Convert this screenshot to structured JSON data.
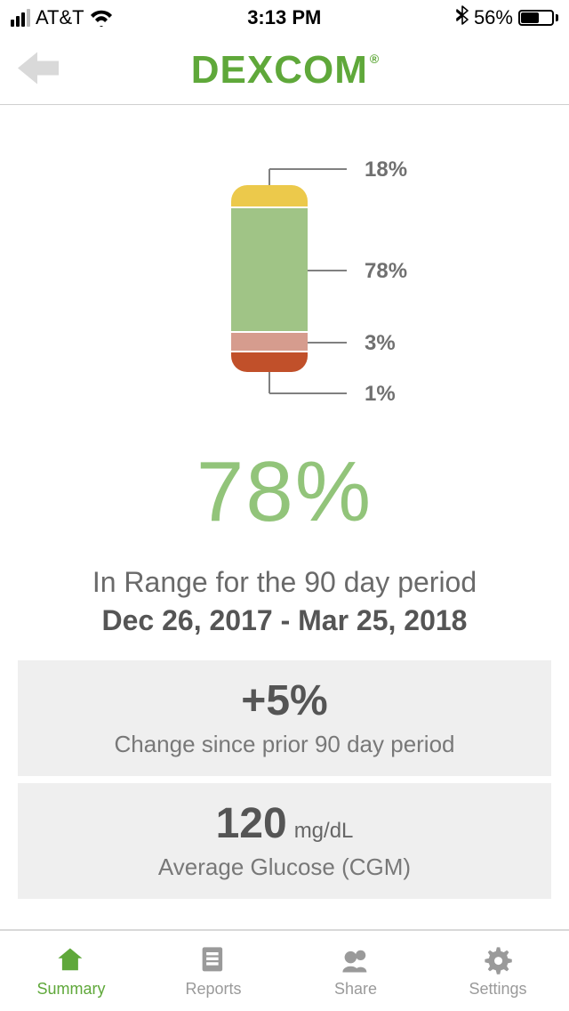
{
  "status": {
    "carrier": "AT&T",
    "time": "3:13 PM",
    "battery_pct": "56%",
    "battery_fill_pct": 56,
    "signal_full_bars": 3,
    "signal_total_bars": 4
  },
  "header": {
    "logo_text": "Dexcom",
    "back_arrow_color": "#d9d9d9",
    "logo_color": "#5fa83a"
  },
  "chart": {
    "type": "stacked-pill",
    "segments": [
      {
        "name": "high",
        "value_pct": 18,
        "label": "18%",
        "color": "#ecc94b"
      },
      {
        "name": "in-range",
        "value_pct": 78,
        "label": "78%",
        "color": "#a0c486"
      },
      {
        "name": "low",
        "value_pct": 3,
        "label": "3%",
        "color": "#d69c8e"
      },
      {
        "name": "very-low",
        "value_pct": 1,
        "label": "1%",
        "color": "#c1502a"
      }
    ],
    "label_color": "#707070",
    "label_fontsize": 24,
    "leader_color": "#808080",
    "pill_border_radius": 18,
    "divider_color": "#ffffff",
    "pill_width": 86,
    "pill_height": 210,
    "fudge": {
      "high": 26,
      "in-range": 140,
      "low": 22,
      "very-low": 22
    }
  },
  "summary": {
    "big_pct": "78%",
    "big_pct_color": "#92c47a",
    "line1": "In Range for the 90 day period",
    "line2": "Dec 26, 2017 - Mar 25, 2018"
  },
  "cards": [
    {
      "big": "+5%",
      "unit": "",
      "sub": "Change since prior 90 day period"
    },
    {
      "big": "120",
      "unit": "mg/dL",
      "sub": "Average Glucose (CGM)"
    }
  ],
  "tabs": [
    {
      "key": "summary",
      "label": "Summary",
      "active": true
    },
    {
      "key": "reports",
      "label": "Reports",
      "active": false
    },
    {
      "key": "share",
      "label": "Share",
      "active": false
    },
    {
      "key": "settings",
      "label": "Settings",
      "active": false
    }
  ],
  "colors": {
    "inactive_icon": "#9a9a9a",
    "active_icon": "#5fa83a",
    "card_bg": "#efefef"
  }
}
